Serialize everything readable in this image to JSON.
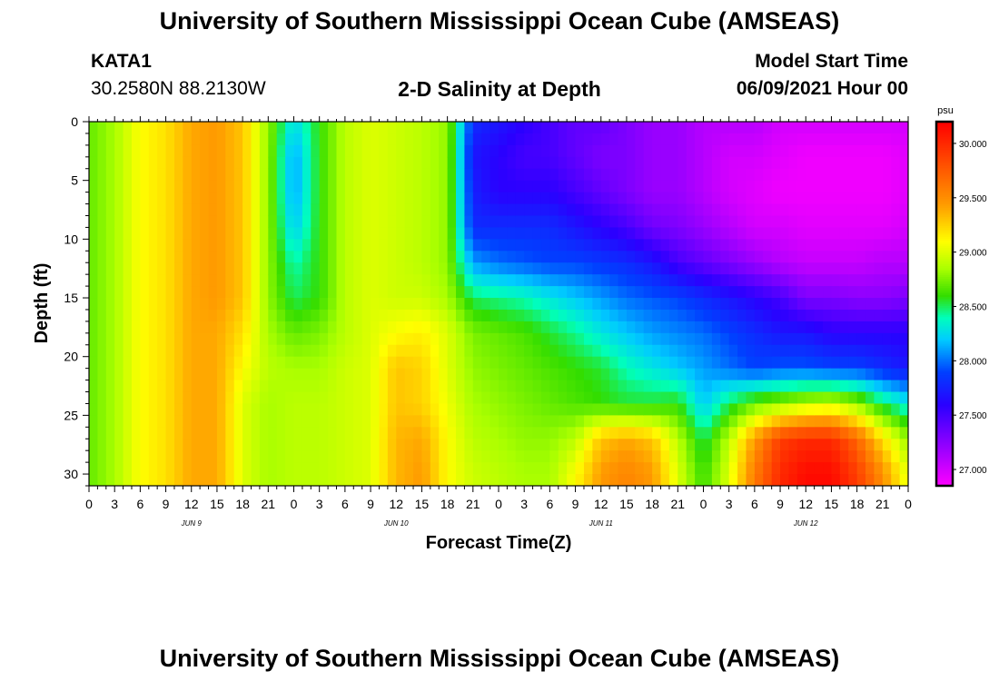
{
  "header": {
    "title": "University of Southern Mississippi Ocean Cube (AMSEAS)",
    "station": "KATA1",
    "coords": "30.2580N  88.2130W",
    "subtitle": "2-D Salinity at Depth",
    "model_start_label": "Model Start Time",
    "model_start_value": "06/09/2021 Hour 00"
  },
  "footer": {
    "title": "University of Southern Mississippi Ocean Cube (AMSEAS)"
  },
  "chart_data": {
    "type": "heatmap",
    "title": "2-D Salinity at Depth",
    "xlabel": "Forecast Time(Z)",
    "ylabel": "Depth (ft)",
    "x_unit": "hours since 06/09/2021 00Z",
    "xlim": [
      0,
      96
    ],
    "ylim": [
      0,
      31
    ],
    "y_reversed": true,
    "x_ticks": [
      "0",
      "3",
      "6",
      "9",
      "12",
      "15",
      "18",
      "21",
      "0",
      "3",
      "6",
      "9",
      "12",
      "15",
      "18",
      "21",
      "0",
      "3",
      "6",
      "9",
      "12",
      "15",
      "18",
      "21",
      "0",
      "3",
      "6",
      "9",
      "12",
      "15",
      "18",
      "21",
      "0"
    ],
    "y_ticks": [
      "0",
      "5",
      "10",
      "15",
      "20",
      "25",
      "30"
    ],
    "day_labels": [
      "JUN 9",
      "JUN 10",
      "JUN 11",
      "JUN 12"
    ],
    "colorbar": {
      "unit": "psu",
      "min": 26.85,
      "max": 30.2,
      "ticks": [
        "27.000",
        "27.500",
        "28.000",
        "28.500",
        "29.000",
        "29.500",
        "30.000"
      ],
      "stops": [
        {
          "v": 26.85,
          "color": "#ff00ff"
        },
        {
          "v": 27.2,
          "color": "#9900ff"
        },
        {
          "v": 27.6,
          "color": "#2a00ff"
        },
        {
          "v": 27.9,
          "color": "#0040ff"
        },
        {
          "v": 28.2,
          "color": "#00ccff"
        },
        {
          "v": 28.4,
          "color": "#00ffbb"
        },
        {
          "v": 28.6,
          "color": "#33dd00"
        },
        {
          "v": 28.85,
          "color": "#aaff00"
        },
        {
          "v": 29.1,
          "color": "#ffff00"
        },
        {
          "v": 29.45,
          "color": "#ff9900"
        },
        {
          "v": 30.2,
          "color": "#ff0000"
        }
      ]
    },
    "depths": [
      0,
      3,
      6,
      9,
      12,
      15,
      18,
      21,
      24,
      27,
      30
    ],
    "hours": [
      0,
      3,
      6,
      9,
      12,
      15,
      18,
      21,
      24,
      27,
      30,
      33,
      36,
      39,
      42,
      45,
      48,
      51,
      54,
      57,
      60,
      63,
      66,
      69,
      72,
      75,
      78,
      81,
      84,
      87,
      90,
      93,
      96
    ],
    "salinity": [
      [
        28.7,
        28.85,
        29.1,
        29.2,
        29.4,
        29.45,
        29.3,
        28.8,
        28.25,
        28.6,
        28.9,
        29.0,
        28.95,
        28.9,
        28.8,
        27.8,
        27.7,
        27.6,
        27.5,
        27.4,
        27.4,
        27.3,
        27.2,
        27.2,
        27.1,
        27.1,
        27.1,
        27.0,
        27.0,
        27.0,
        27.0,
        27.0,
        27.0
      ],
      [
        28.7,
        28.85,
        29.1,
        29.2,
        29.4,
        29.45,
        29.3,
        28.8,
        28.1,
        28.6,
        28.9,
        29.0,
        28.95,
        28.9,
        28.8,
        27.7,
        27.6,
        27.5,
        27.5,
        27.4,
        27.3,
        27.3,
        27.2,
        27.2,
        27.1,
        27.0,
        27.0,
        26.95,
        26.9,
        26.9,
        26.9,
        26.9,
        26.95
      ],
      [
        28.7,
        28.85,
        29.1,
        29.2,
        29.4,
        29.45,
        29.3,
        28.8,
        28.1,
        28.6,
        28.9,
        29.0,
        28.95,
        28.9,
        28.8,
        27.75,
        27.6,
        27.6,
        27.6,
        27.5,
        27.4,
        27.3,
        27.2,
        27.2,
        27.1,
        27.0,
        26.95,
        26.9,
        26.9,
        26.9,
        26.9,
        26.9,
        26.95
      ],
      [
        28.7,
        28.85,
        29.1,
        29.2,
        29.4,
        29.45,
        29.3,
        28.8,
        28.2,
        28.6,
        28.9,
        29.0,
        28.95,
        28.9,
        28.8,
        27.8,
        27.8,
        27.8,
        27.8,
        27.7,
        27.6,
        27.5,
        27.35,
        27.3,
        27.2,
        27.1,
        27.0,
        27.0,
        26.95,
        26.95,
        26.95,
        26.95,
        27.0
      ],
      [
        28.7,
        28.85,
        29.1,
        29.2,
        29.4,
        29.45,
        29.3,
        28.8,
        28.4,
        28.6,
        28.9,
        29.0,
        28.95,
        28.9,
        28.8,
        28.1,
        28.0,
        27.95,
        27.9,
        27.9,
        27.85,
        27.8,
        27.7,
        27.5,
        27.4,
        27.3,
        27.2,
        27.1,
        27.05,
        27.05,
        27.05,
        27.1,
        27.1
      ],
      [
        28.7,
        28.85,
        29.1,
        29.2,
        29.4,
        29.45,
        29.3,
        28.8,
        28.5,
        28.6,
        28.9,
        29.0,
        28.95,
        28.95,
        28.85,
        28.5,
        28.45,
        28.4,
        28.3,
        28.2,
        28.1,
        28.0,
        27.95,
        27.9,
        27.8,
        27.7,
        27.6,
        27.5,
        27.3,
        27.3,
        27.25,
        27.25,
        27.3
      ],
      [
        28.7,
        28.85,
        29.1,
        29.2,
        29.4,
        29.4,
        29.2,
        28.85,
        28.7,
        28.75,
        28.9,
        29.0,
        29.1,
        29.15,
        29.0,
        28.75,
        28.7,
        28.65,
        28.55,
        28.45,
        28.3,
        28.2,
        28.1,
        28.05,
        28.0,
        27.9,
        27.8,
        27.7,
        27.7,
        27.6,
        27.6,
        27.6,
        27.6
      ],
      [
        28.7,
        28.85,
        29.1,
        29.2,
        29.4,
        29.4,
        29.1,
        28.9,
        28.85,
        28.85,
        28.95,
        29.0,
        29.3,
        29.25,
        29.0,
        28.8,
        28.75,
        28.7,
        28.65,
        28.6,
        28.55,
        28.4,
        28.3,
        28.2,
        28.1,
        28.0,
        27.9,
        27.95,
        27.95,
        27.9,
        27.9,
        27.8,
        27.7
      ],
      [
        28.7,
        28.85,
        29.1,
        29.2,
        29.4,
        29.4,
        29.0,
        28.85,
        28.9,
        28.9,
        28.95,
        29.0,
        29.3,
        29.25,
        29.05,
        28.85,
        28.8,
        28.75,
        28.7,
        28.65,
        28.6,
        28.55,
        28.55,
        28.6,
        28.2,
        28.5,
        28.7,
        28.8,
        28.9,
        28.95,
        28.8,
        28.5,
        28.3
      ],
      [
        28.7,
        28.85,
        29.1,
        29.2,
        29.4,
        29.4,
        29.0,
        28.85,
        28.9,
        28.9,
        28.95,
        29.0,
        29.35,
        29.4,
        29.1,
        28.9,
        28.85,
        28.8,
        28.8,
        28.9,
        29.3,
        29.4,
        29.3,
        28.9,
        28.5,
        28.9,
        29.45,
        29.9,
        30.0,
        30.0,
        29.7,
        29.2,
        28.8
      ],
      [
        28.7,
        28.85,
        29.1,
        29.2,
        29.4,
        29.4,
        29.0,
        28.85,
        28.9,
        28.9,
        28.95,
        29.0,
        29.35,
        29.45,
        29.1,
        28.95,
        28.9,
        28.85,
        28.85,
        29.1,
        29.45,
        29.55,
        29.45,
        29.0,
        28.6,
        29.0,
        29.6,
        30.0,
        30.15,
        30.15,
        29.9,
        29.5,
        29.0
      ]
    ]
  }
}
